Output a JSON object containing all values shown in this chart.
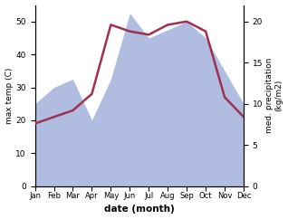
{
  "months": [
    "Jan",
    "Feb",
    "Mar",
    "Apr",
    "May",
    "Jun",
    "Jul",
    "Aug",
    "Sep",
    "Oct",
    "Nov",
    "Dec"
  ],
  "month_indices": [
    1,
    2,
    3,
    4,
    5,
    6,
    7,
    8,
    9,
    10,
    11,
    12
  ],
  "temperature": [
    19,
    21,
    23,
    28,
    49,
    47,
    46,
    49,
    50,
    47,
    27,
    21
  ],
  "precipitation": [
    10,
    12,
    13,
    8,
    13,
    21,
    18,
    19,
    20,
    18,
    14,
    10
  ],
  "temp_color": "#a03050",
  "precip_color": "#b0bde0",
  "temp_ylim": [
    0,
    55
  ],
  "precip_ylim": [
    0,
    22
  ],
  "temp_yticks": [
    0,
    10,
    20,
    30,
    40,
    50
  ],
  "precip_yticks": [
    0,
    5,
    10,
    15,
    20
  ],
  "xlabel": "date (month)",
  "ylabel_left": "max temp (C)",
  "ylabel_right": "med. precipitation\n(kg/m2)",
  "figsize": [
    3.18,
    2.42
  ],
  "dpi": 100
}
